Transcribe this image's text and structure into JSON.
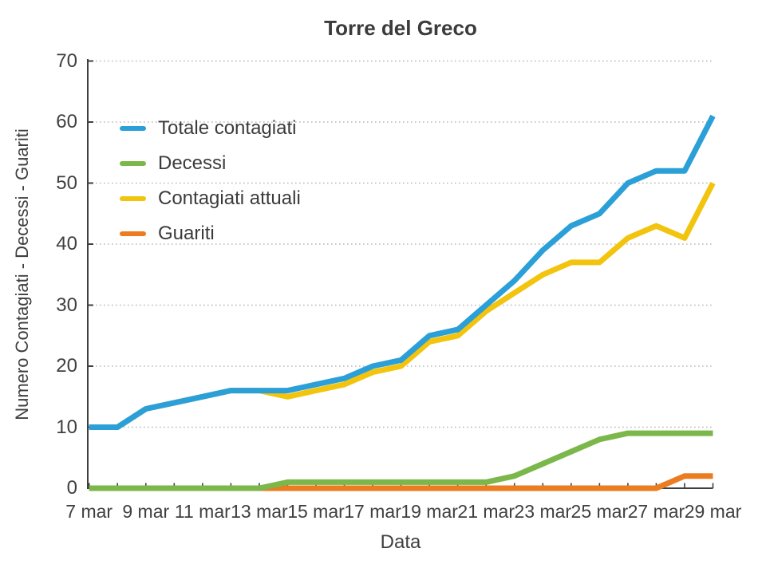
{
  "chart_data": {
    "type": "line",
    "title": "Torre del Greco",
    "xlabel": "Data",
    "ylabel": "Numero Contagiati - Decessi - Guariti",
    "ylim": [
      0,
      70
    ],
    "yticks": [
      0,
      10,
      20,
      30,
      40,
      50,
      60,
      70
    ],
    "grid": "horizontal dotted lines at each y tick",
    "legend_position": "top-left inside plot",
    "categories": [
      "7 mar",
      "8 mar",
      "9 mar",
      "10 mar",
      "11 mar",
      "12 mar",
      "13 mar",
      "14 mar",
      "15 mar",
      "16 mar",
      "17 mar",
      "18 mar",
      "19 mar",
      "20 mar",
      "21 mar",
      "22 mar",
      "23 mar",
      "24 mar",
      "25 mar",
      "26 mar",
      "27 mar",
      "28 mar",
      "29 mar"
    ],
    "xticks_shown": [
      "7 mar",
      "9 mar",
      "11 mar",
      "13 mar",
      "15 mar",
      "17 mar",
      "19 mar",
      "21 mar",
      "23 mar",
      "25 mar",
      "27 mar",
      "29 mar"
    ],
    "series": [
      {
        "name": "Totale contagiati",
        "color": "#2B9FD8",
        "values": [
          10,
          10,
          13,
          14,
          15,
          16,
          16,
          16,
          17,
          18,
          20,
          21,
          25,
          26,
          30,
          34,
          39,
          43,
          45,
          50,
          52,
          52,
          61
        ]
      },
      {
        "name": "Decessi",
        "color": "#7BB74A",
        "values": [
          0,
          0,
          0,
          0,
          0,
          0,
          0,
          1,
          1,
          1,
          1,
          1,
          1,
          1,
          1,
          2,
          4,
          6,
          8,
          9,
          9,
          9,
          9
        ]
      },
      {
        "name": "Contagiati attuali",
        "color": "#F2C40E",
        "values": [
          10,
          10,
          13,
          14,
          15,
          16,
          16,
          15,
          16,
          17,
          19,
          20,
          24,
          25,
          29,
          32,
          35,
          37,
          37,
          41,
          43,
          41,
          50
        ]
      },
      {
        "name": "Guariti",
        "color": "#EC7C20",
        "values": [
          0,
          0,
          0,
          0,
          0,
          0,
          0,
          0,
          0,
          0,
          0,
          0,
          0,
          0,
          0,
          0,
          0,
          0,
          0,
          0,
          0,
          2,
          2
        ]
      }
    ]
  },
  "colors": {
    "background": "#ffffff",
    "text": "#3f3f3f",
    "axis": "#3f3f3f",
    "grid": "#b8b8b8"
  }
}
